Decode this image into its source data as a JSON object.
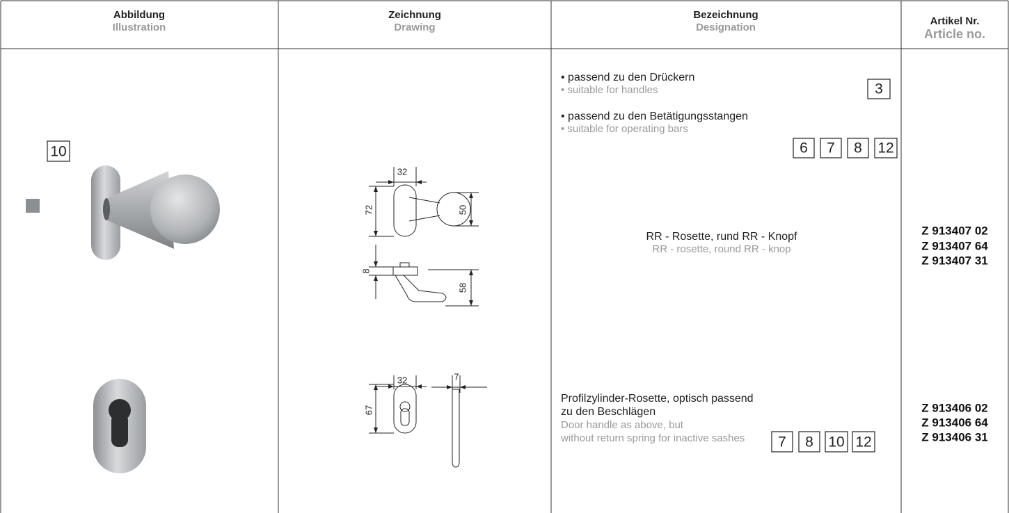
{
  "header": {
    "columns": [
      {
        "de": "Abbildung",
        "en": "Illustration"
      },
      {
        "de": "Zeichnung",
        "en": "Drawing"
      },
      {
        "de": "Bezeichnung",
        "en": "Designation"
      },
      {
        "de": "Artikel Nr.",
        "en": "Article no."
      }
    ]
  },
  "rows": [
    {
      "illustration_ref": 10,
      "drawing_dimensions": [
        32,
        72,
        50,
        8,
        58
      ],
      "designation": {
        "notes": [
          {
            "de": "• passend zu den Drückern",
            "en": "• suitable for handles",
            "refs": [
              3
            ]
          },
          {
            "de": "• passend zu den Betätigungsstangen",
            "en": "• suitable for operating bars",
            "refs": [
              6,
              7,
              8,
              12
            ]
          }
        ],
        "de": [
          "RR - Rosette, rund RR - Knopf"
        ],
        "en": [
          "RR - rosette, round RR - knop"
        ]
      },
      "article_numbers": [
        "Z 913407 02",
        "Z 913407 64",
        "Z 913407 31"
      ]
    },
    {
      "drawing_dimensions": [
        32,
        7,
        67
      ],
      "designation": {
        "de": [
          "Profilzylinder-Rosette, optisch passend",
          "zu den Beschlägen"
        ],
        "en": [
          "Door handle as above, but",
          "without return spring for inactive sashes"
        ],
        "refs": [
          7,
          8,
          10,
          12
        ]
      },
      "article_numbers": [
        "Z 913406 02",
        "Z 913406 64",
        "Z 913406 31"
      ]
    }
  ]
}
